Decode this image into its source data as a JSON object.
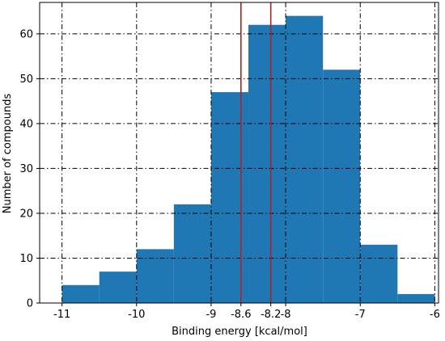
{
  "chart_data": {
    "type": "bar",
    "xlabel": "Binding energy [kcal/mol]",
    "ylabel": "Number of compounds",
    "xlim": [
      -11.3,
      -5.95
    ],
    "ylim": [
      0,
      67
    ],
    "grid": true,
    "bar_color": "#1f77b4",
    "vline_color": "#b22222",
    "bins": [
      {
        "left": -11.0,
        "right": -10.5,
        "count": 4
      },
      {
        "left": -10.5,
        "right": -10.0,
        "count": 7
      },
      {
        "left": -10.0,
        "right": -9.5,
        "count": 12
      },
      {
        "left": -9.5,
        "right": -9.0,
        "count": 22
      },
      {
        "left": -9.0,
        "right": -8.5,
        "count": 47
      },
      {
        "left": -8.5,
        "right": -8.0,
        "count": 62
      },
      {
        "left": -8.0,
        "right": -7.5,
        "count": 64
      },
      {
        "left": -7.5,
        "right": -7.0,
        "count": 52
      },
      {
        "left": -7.0,
        "right": -6.5,
        "count": 13
      },
      {
        "left": -6.5,
        "right": -6.0,
        "count": 2
      }
    ],
    "vlines": [
      -8.6,
      -8.2
    ],
    "x_ticks": [
      {
        "value": -11,
        "label": "-11"
      },
      {
        "value": -10,
        "label": "-10"
      },
      {
        "value": -9,
        "label": "-9"
      },
      {
        "value": -8.6,
        "label": "-8.6"
      },
      {
        "value": -8.2,
        "label": "-8.2"
      },
      {
        "value": -8,
        "label": "-8"
      },
      {
        "value": -7,
        "label": "-7"
      },
      {
        "value": -6,
        "label": "-6"
      }
    ],
    "x_grid": [
      -11,
      -10,
      -9,
      -8.6,
      -8.2,
      -8,
      -7,
      -6
    ],
    "y_ticks": [
      {
        "value": 0,
        "label": "0"
      },
      {
        "value": 10,
        "label": "10"
      },
      {
        "value": 20,
        "label": "20"
      },
      {
        "value": 30,
        "label": "30"
      },
      {
        "value": 40,
        "label": "40"
      },
      {
        "value": 50,
        "label": "50"
      },
      {
        "value": 60,
        "label": "60"
      }
    ]
  }
}
